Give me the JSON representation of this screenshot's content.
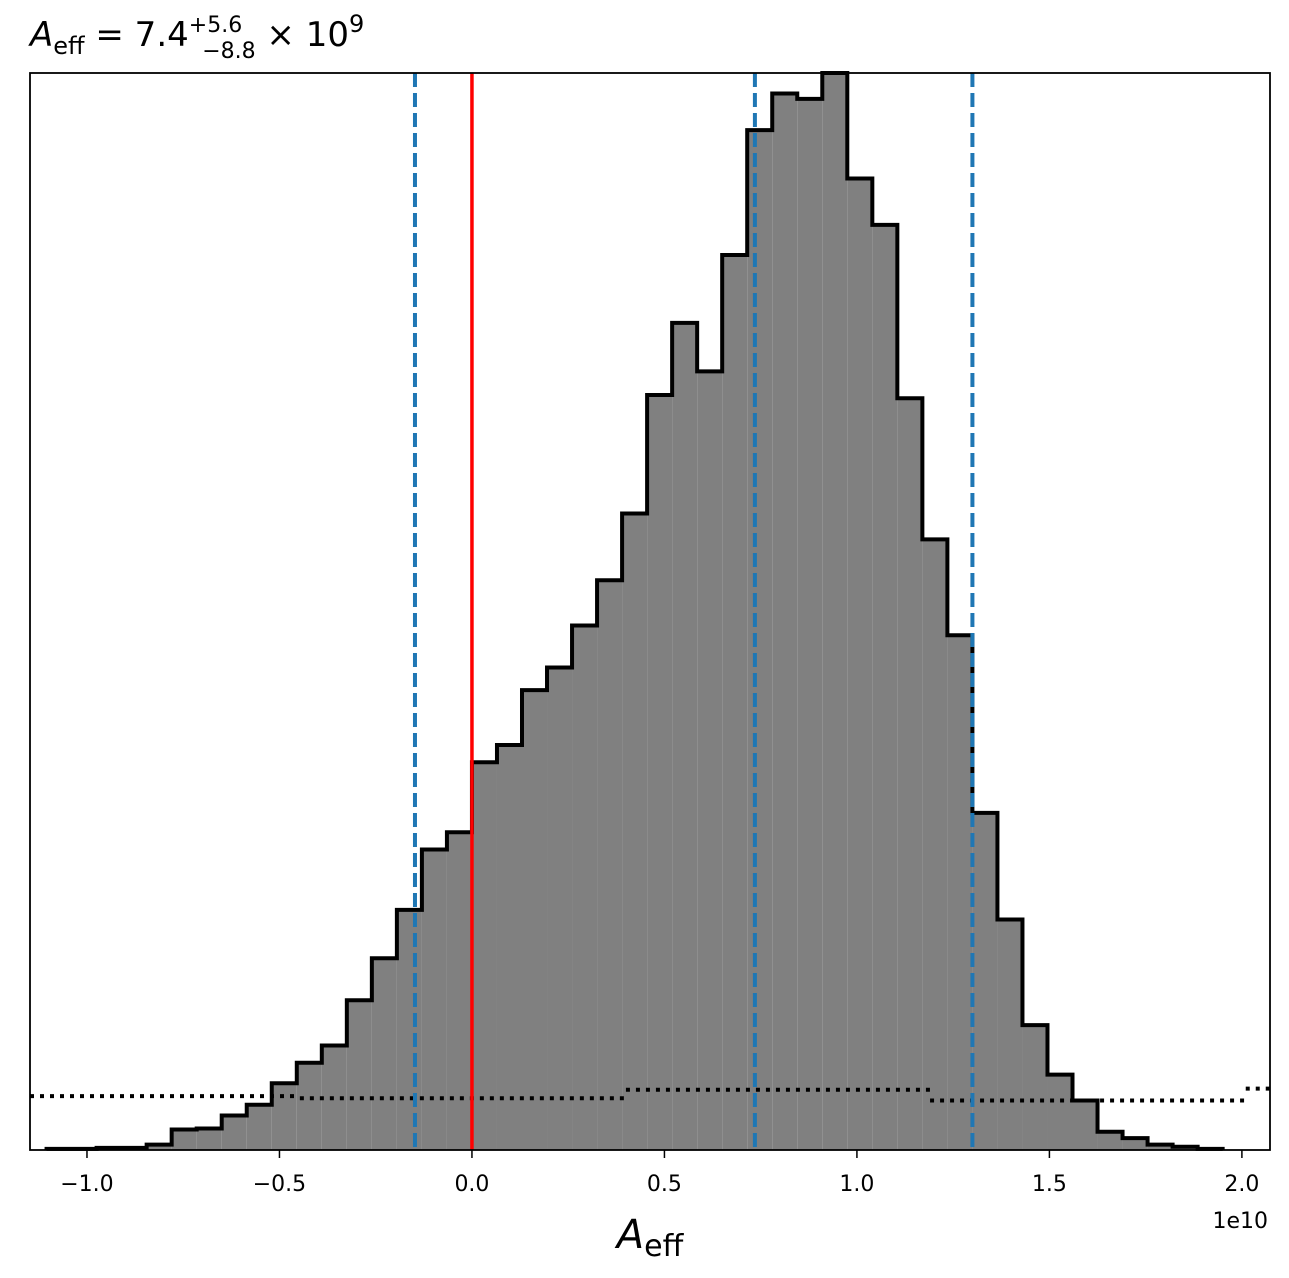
{
  "chart_data": {
    "type": "histogram",
    "title": {
      "base": "A",
      "sub": "eff",
      "main": " = 7.4",
      "sup": "+5.6",
      "sub2": "−8.8",
      "tail": " × 10",
      "exp": "9"
    },
    "xlabel": "A",
    "xlabel_sub": "eff",
    "x_offset_label": "1e10",
    "bins": [
      -1.105,
      -1.04,
      -0.975,
      -0.91,
      -0.845,
      -0.78,
      -0.715,
      -0.65,
      -0.585,
      -0.52,
      -0.455,
      -0.39,
      -0.325,
      -0.26,
      -0.195,
      -0.13,
      -0.065,
      0,
      0.065,
      0.13,
      0.195,
      0.26,
      0.325,
      0.39,
      0.455,
      0.52,
      0.585,
      0.65,
      0.715,
      0.78,
      0.845,
      0.91,
      0.975,
      1.04,
      1.105,
      1.17,
      1.235,
      1.3,
      1.365,
      1.43,
      1.495,
      1.56,
      1.625,
      1.69,
      1.755,
      1.82,
      1.885,
      1.95
    ],
    "values": [
      0.1,
      0.1,
      0.2,
      0.2,
      0.5,
      1.9,
      2.0,
      3.2,
      4.2,
      6.2,
      8.1,
      9.7,
      13.9,
      17.8,
      22.3,
      27.9,
      29.5,
      36.0,
      37.6,
      42.7,
      44.8,
      48.7,
      52.9,
      59.1,
      70.1,
      76.8,
      72.3,
      83.1,
      94.7,
      98.1,
      97.6,
      100,
      90.2,
      85.9,
      69.8,
      56.7,
      47.8,
      31.3,
      21.4,
      11.6,
      7.0,
      4.6,
      1.7,
      1.1,
      0.5,
      0.3,
      0.1
    ],
    "color": "#808080",
    "edge_color": "#000000",
    "prior": {
      "step_edges": [
        -1.148,
        -0.447,
        0.4,
        1.19,
        2.01,
        2.073
      ],
      "values": [
        5.0,
        4.8,
        5.6,
        4.6,
        5.7
      ],
      "color": "#000000"
    },
    "reference_line": {
      "x": 0,
      "color": "#ff0000"
    },
    "quantile_lines": {
      "x": [
        -0.148,
        0.735,
        1.3
      ],
      "color": "#1f77b4"
    },
    "xlim": [
      -1.148,
      2.073
    ],
    "ylim": [
      0,
      100
    ],
    "xticks": [
      {
        "value": -1.0,
        "label": "−1.0"
      },
      {
        "value": -0.5,
        "label": "−0.5"
      },
      {
        "value": 0,
        "label": "0.0"
      },
      {
        "value": 0.5,
        "label": "0.5"
      },
      {
        "value": 1.0,
        "label": "1.0"
      },
      {
        "value": 1.5,
        "label": "1.5"
      },
      {
        "value": 2.0,
        "label": "2.0"
      }
    ]
  }
}
